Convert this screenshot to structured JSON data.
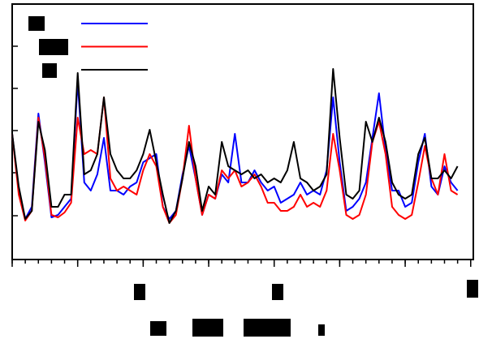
{
  "chart_data": {
    "type": "line",
    "x": [
      0,
      0.5,
      1,
      1.5,
      2,
      2.5,
      3,
      3.5,
      4,
      4.5,
      5,
      5.5,
      6,
      6.5,
      7,
      7.5,
      8,
      8.5,
      9,
      9.5,
      10,
      10.5,
      11,
      11.5,
      12,
      12.5,
      13,
      13.5,
      14,
      14.5,
      15,
      15.5,
      16,
      16.5,
      17,
      17.5,
      18,
      18.5,
      19,
      19.5,
      20,
      20.5,
      21,
      21.5,
      22,
      22.5,
      23,
      23.5,
      24,
      24.5,
      25,
      25.5,
      26,
      26.5,
      27,
      27.5,
      28,
      28.5,
      29,
      29.5,
      30,
      30.5,
      31,
      31.5,
      32,
      32.5,
      33,
      33.5,
      34
    ],
    "series": [
      {
        "color": "#0000ff",
        "values": [
          155,
          85,
          50,
          65,
          180,
          120,
          52,
          55,
          65,
          75,
          220,
          95,
          85,
          105,
          150,
          85,
          85,
          80,
          90,
          95,
          120,
          125,
          130,
          65,
          50,
          60,
          105,
          140,
          100,
          55,
          80,
          75,
          105,
          95,
          155,
          95,
          95,
          110,
          95,
          85,
          90,
          70,
          75,
          80,
          95,
          80,
          85,
          80,
          110,
          200,
          120,
          60,
          65,
          75,
          95,
          150,
          205,
          135,
          85,
          85,
          65,
          70,
          120,
          155,
          90,
          80,
          115,
          95,
          85
        ]
      },
      {
        "color": "#ff0000",
        "values": [
          155,
          80,
          48,
          60,
          175,
          125,
          55,
          52,
          58,
          70,
          175,
          130,
          135,
          130,
          200,
          100,
          85,
          90,
          85,
          80,
          110,
          130,
          115,
          65,
          45,
          55,
          100,
          165,
          100,
          55,
          80,
          75,
          110,
          100,
          110,
          90,
          95,
          105,
          90,
          70,
          70,
          60,
          60,
          65,
          80,
          65,
          70,
          65,
          85,
          155,
          110,
          55,
          50,
          55,
          80,
          145,
          170,
          130,
          65,
          55,
          50,
          55,
          95,
          140,
          100,
          80,
          130,
          85,
          80
        ]
      },
      {
        "color": "#000000",
        "values": [
          155,
          90,
          50,
          60,
          170,
          135,
          65,
          65,
          80,
          80,
          230,
          105,
          110,
          130,
          200,
          130,
          110,
          100,
          100,
          110,
          130,
          160,
          120,
          80,
          45,
          60,
          100,
          145,
          115,
          60,
          90,
          80,
          145,
          115,
          110,
          105,
          110,
          100,
          105,
          95,
          100,
          95,
          110,
          145,
          100,
          95,
          85,
          90,
          105,
          235,
          150,
          80,
          75,
          85,
          170,
          145,
          175,
          145,
          95,
          80,
          75,
          80,
          130,
          150,
          100,
          100,
          110,
          100,
          115
        ]
      }
    ],
    "xlim": [
      0,
      35.2
    ],
    "xticks": [
      0,
      5,
      10,
      15,
      20,
      25,
      30,
      35
    ],
    "xminor_step": 1,
    "ylim": [
      0,
      315
    ],
    "yticks": [
      54,
      107,
      159,
      211,
      263
    ]
  }
}
